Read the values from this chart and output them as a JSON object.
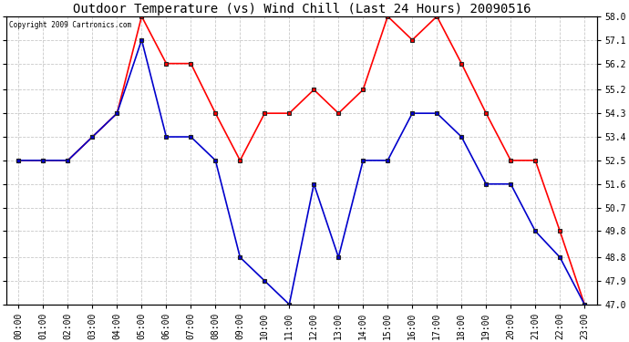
{
  "title": "Outdoor Temperature (vs) Wind Chill (Last 24 Hours) 20090516",
  "copyright": "Copyright 2009 Cartronics.com",
  "hours": [
    "00:00",
    "01:00",
    "02:00",
    "03:00",
    "04:00",
    "05:00",
    "06:00",
    "07:00",
    "08:00",
    "09:00",
    "10:00",
    "11:00",
    "12:00",
    "13:00",
    "14:00",
    "15:00",
    "16:00",
    "17:00",
    "18:00",
    "19:00",
    "20:00",
    "21:00",
    "22:00",
    "23:00"
  ],
  "outdoor_temp": [
    52.5,
    52.5,
    52.5,
    53.4,
    54.3,
    58.0,
    56.2,
    56.2,
    54.3,
    52.5,
    54.3,
    54.3,
    55.2,
    54.3,
    55.2,
    58.0,
    57.1,
    58.0,
    56.2,
    54.3,
    52.5,
    52.5,
    49.8,
    47.0
  ],
  "wind_chill": [
    52.5,
    52.5,
    52.5,
    53.4,
    54.3,
    57.1,
    53.4,
    53.4,
    52.5,
    48.8,
    47.9,
    47.0,
    51.6,
    48.8,
    52.5,
    52.5,
    54.3,
    54.3,
    53.4,
    51.6,
    51.6,
    49.8,
    48.8,
    47.0
  ],
  "temp_color": "#ff0000",
  "chill_color": "#0000cc",
  "ylim_min": 47.0,
  "ylim_max": 58.0,
  "yticks": [
    47.0,
    47.9,
    48.8,
    49.8,
    50.7,
    51.6,
    52.5,
    53.4,
    54.3,
    55.2,
    56.2,
    57.1,
    58.0
  ],
  "bg_color": "#ffffff",
  "plot_bg": "#ffffff",
  "grid_color": "#bbbbbb",
  "title_fontsize": 10,
  "tick_fontsize": 7,
  "marker_size": 3,
  "line_width": 1.2
}
